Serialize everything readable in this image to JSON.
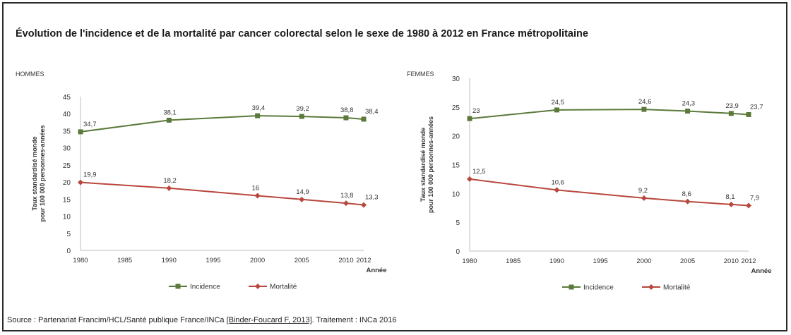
{
  "title": "Évolution de l'incidence et de la mortalité par cancer colorectal selon le sexe de 1980 à 2012 en France métropolitaine",
  "source": {
    "prefix": "Source : Partenariat Francim/HCL/Santé publique France/INCa ",
    "reference": "[Binder-Foucard F, 2013]",
    "suffix": ". Traitement : INCa 2016"
  },
  "colors": {
    "incidence": "#5b7a3a",
    "mortalite": "#b8473c",
    "axis": "#bfbfbf"
  },
  "chart_data": [
    {
      "type": "line",
      "panel": "HOMMES",
      "ylabel": [
        "Taux standardisé monde",
        "pour 100 000 personnes-années"
      ],
      "xlabel": "Année",
      "x": [
        1980,
        1990,
        2000,
        2005,
        2010,
        2012
      ],
      "xticks": [
        1980,
        1985,
        1990,
        1995,
        2000,
        2005,
        2010,
        2012
      ],
      "yticks": [
        0,
        5,
        10,
        15,
        20,
        25,
        30,
        35,
        40,
        45
      ],
      "ylim": [
        0,
        45
      ],
      "series": [
        {
          "name": "Incidence",
          "marker": "square",
          "values": [
            34.7,
            38.1,
            39.4,
            39.2,
            38.8,
            38.4
          ],
          "labels": [
            "34,7",
            "38,1",
            "39,4",
            "39,2",
            "38,8",
            "38,4"
          ]
        },
        {
          "name": "Mortalité",
          "marker": "diamond",
          "values": [
            19.9,
            18.2,
            16,
            14.9,
            13.8,
            13.3
          ],
          "labels": [
            "19,9",
            "18,2",
            "16",
            "14,9",
            "13,8",
            "13,3"
          ]
        }
      ],
      "legend": "bottom"
    },
    {
      "type": "line",
      "panel": "FEMMES",
      "ylabel": [
        "Taux standardisé monde",
        "pour 100 000 personnes-années"
      ],
      "xlabel": "Année",
      "x": [
        1980,
        1990,
        2000,
        2005,
        2010,
        2012
      ],
      "xticks": [
        1980,
        1985,
        1990,
        1995,
        2000,
        2005,
        2010,
        2012
      ],
      "yticks": [
        0,
        5,
        10,
        15,
        20,
        25,
        30
      ],
      "ylim": [
        0,
        30
      ],
      "series": [
        {
          "name": "Incidence",
          "marker": "square",
          "values": [
            23,
            24.5,
            24.6,
            24.3,
            23.9,
            23.7
          ],
          "labels": [
            "23",
            "24,5",
            "24,6",
            "24,3",
            "23,9",
            "23,7"
          ]
        },
        {
          "name": "Mortalité",
          "marker": "diamond",
          "values": [
            12.5,
            10.6,
            9.2,
            8.6,
            8.1,
            7.9
          ],
          "labels": [
            "12,5",
            "10,6",
            "9,2",
            "8,6",
            "8,1",
            "7,9"
          ]
        }
      ],
      "legend": "bottom"
    }
  ]
}
